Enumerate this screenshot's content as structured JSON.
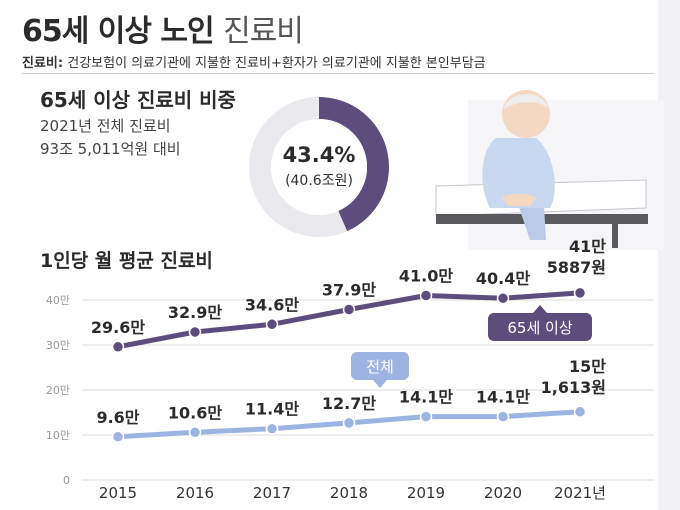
{
  "header": {
    "title_bold": "65세 이상 노인",
    "title_thin": "진료비",
    "definition_term": "진료비:",
    "definition_text": "건강보험이 의료기관에 지불한 진료비+환자가 의료기관에 지불한 본인부담금"
  },
  "share": {
    "title": "65세 이상 진료비 비중",
    "line1": "2021년 전체 진료비",
    "line2": "93조 5,011억원 대비",
    "pct_label": "43.4%",
    "amount_label": "(40.6조원)",
    "fraction": 0.434,
    "colors": {
      "filled": "#5d4d7d",
      "track": "#e9e9ee"
    }
  },
  "chart_title": "1인당 월 평균 진료비",
  "chart_data": {
    "type": "line",
    "categories": [
      "2015",
      "2016",
      "2017",
      "2018",
      "2019",
      "2020",
      "2021년"
    ],
    "y_unit": "만",
    "ylim": [
      0,
      45
    ],
    "y_ticks": [
      0,
      10,
      20,
      30,
      40
    ],
    "y_tick_labels": [
      "0",
      "10만",
      "20만",
      "30만",
      "40만"
    ],
    "grid": true,
    "series": [
      {
        "name": "65세 이상",
        "values": [
          29.6,
          32.9,
          34.6,
          37.9,
          41.0,
          40.4,
          41.5887
        ],
        "point_labels": [
          "29.6만",
          "32.9만",
          "34.6만",
          "37.9만",
          "41.0만",
          "40.4만"
        ],
        "end_label": [
          "41만",
          "5887원"
        ],
        "color": "#5d4d7d"
      },
      {
        "name": "전체",
        "values": [
          9.6,
          10.6,
          11.4,
          12.7,
          14.1,
          14.1,
          15.1613
        ],
        "point_labels": [
          "9.6만",
          "10.6만",
          "11.4만",
          "12.7만",
          "14.1만",
          "14.1만"
        ],
        "end_label": [
          "15만",
          "1,613원"
        ],
        "color": "#9db4e2"
      }
    ]
  },
  "colors": {
    "grid": "#dcdcdc",
    "axis_text": "#999999",
    "text": "#2b2b2b"
  }
}
